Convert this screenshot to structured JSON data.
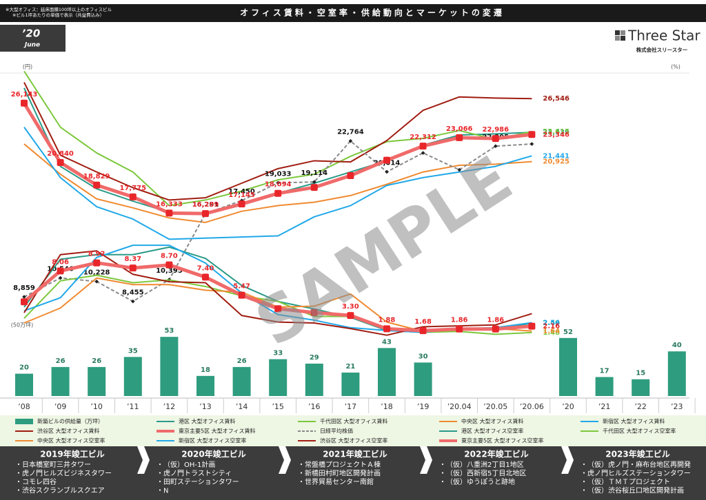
{
  "header": {
    "notes": [
      "※大型オフィス：延床面積100坪以上のオフィスビル",
      "※ビル1坪あたりの単価で表示（共益費込み）"
    ],
    "title": "オフィス賃料・空室率・供給動向とマーケットの変遷"
  },
  "date": {
    "year": "’20",
    "month": "June"
  },
  "logo": {
    "name": "Three Star",
    "company": "株式会社スリースター"
  },
  "watermark": "SAMPLE",
  "chart_data": {
    "type": "combo",
    "y_label": "(円)",
    "y2_label": "(%)",
    "y3_label": "(50万坪)",
    "ylim": [
      8000,
      30000
    ],
    "y2lim": [
      0,
      30
    ],
    "y3lim": [
      0,
      100
    ],
    "categories": [
      "’08",
      "’09",
      "’10",
      "’11",
      "’12",
      "’13",
      "’14",
      "’15",
      "’16",
      "’17",
      "’18",
      "’19",
      "’20.04",
      "’20.05",
      "’20.06",
      "’20",
      "’21",
      "’22",
      "’23"
    ],
    "series": [
      {
        "name": "新築ビルの供給量（万坪）",
        "type": "bar",
        "axis": "y3",
        "color": "#2e9c7e",
        "values": [
          20,
          26,
          26,
          35,
          53,
          18,
          26,
          33,
          29,
          21,
          43,
          30,
          null,
          null,
          null,
          52,
          17,
          15,
          40
        ]
      },
      {
        "name": "港区 大型オフィス賃料",
        "type": "line",
        "axis": "y",
        "color": "#2a9a88",
        "values": [
          27500,
          20500,
          18500,
          17400,
          16400,
          16300,
          17200,
          18100,
          19000,
          20000,
          21000,
          22400,
          23300,
          23400,
          23539,
          null,
          null,
          null,
          null
        ],
        "value_labels": [
          null,
          null,
          null,
          null,
          null,
          null,
          null,
          null,
          null,
          null,
          null,
          null,
          null,
          null,
          "23,539",
          null,
          null,
          null,
          null
        ]
      },
      {
        "name": "千代田区 大型オフィス賃料",
        "type": "line",
        "axis": "y",
        "color": "#7cc83c",
        "values": [
          29000,
          24000,
          21700,
          20000,
          17000,
          17500,
          18300,
          19300,
          19800,
          21400,
          22700,
          23000,
          23700,
          22900,
          23615,
          null,
          null,
          null,
          null
        ],
        "value_labels": [
          null,
          null,
          null,
          null,
          null,
          null,
          null,
          null,
          null,
          null,
          null,
          null,
          null,
          null,
          "23,615",
          null,
          null,
          null,
          null
        ]
      },
      {
        "name": "中央区 大型オフィス賃料",
        "type": "line",
        "axis": "y",
        "color": "#f08a30",
        "values": [
          22500,
          19800,
          17600,
          16800,
          15900,
          15500,
          16500,
          17000,
          17300,
          17900,
          18900,
          20000,
          20600,
          20700,
          20925,
          null,
          null,
          null,
          null
        ],
        "value_labels": [
          null,
          null,
          null,
          null,
          null,
          null,
          null,
          null,
          null,
          null,
          null,
          null,
          null,
          null,
          "20,925",
          null,
          null,
          null,
          null
        ]
      },
      {
        "name": "新宿区 大型オフィス賃料",
        "type": "line",
        "axis": "y",
        "color": "#20a8e8",
        "values": [
          24000,
          19500,
          16900,
          15800,
          14000,
          14100,
          14200,
          14300,
          16000,
          17000,
          18800,
          19500,
          20000,
          20500,
          21441,
          null,
          null,
          null,
          null
        ],
        "value_labels": [
          null,
          null,
          null,
          null,
          null,
          null,
          null,
          null,
          null,
          null,
          null,
          null,
          null,
          null,
          "21,441",
          null,
          null,
          null,
          null
        ]
      },
      {
        "name": "渋谷区 大型オフィス賃料",
        "type": "line",
        "axis": "y",
        "color": "#a01c10",
        "values": [
          28000,
          21500,
          20000,
          18600,
          17500,
          17700,
          19000,
          20300,
          21000,
          20900,
          22800,
          25500,
          26700,
          26600,
          26546,
          null,
          null,
          null,
          null
        ],
        "value_labels": [
          null,
          null,
          null,
          null,
          null,
          null,
          null,
          null,
          null,
          null,
          null,
          null,
          null,
          null,
          "26,546",
          null,
          null,
          null,
          null
        ]
      },
      {
        "name": "東京主要5区 大型オフィス賃料",
        "type": "line",
        "axis": "y",
        "color": "#f06a6a",
        "marker": "#e8262a",
        "label_color": "#e8262a",
        "values": [
          26143,
          20840,
          18829,
          17775,
          16333,
          16289,
          17145,
          18094,
          18627,
          19677,
          21048,
          22312,
          23066,
          22986,
          23346,
          null,
          null,
          null,
          null
        ],
        "value_labels": [
          "26,143",
          "20,840",
          "18,829",
          "17,775",
          "16,333",
          "16,289",
          "17,145",
          "18,094",
          null,
          null,
          null,
          "22,312",
          "23,066",
          "22,986",
          "23,346",
          null,
          null,
          null,
          null
        ]
      },
      {
        "name": "日経平均株価",
        "type": "line",
        "axis": "y",
        "color": "#888888",
        "dashed": true,
        "label_color": "#111111",
        "values": [
          8859,
          10546,
          10228,
          8455,
          10395,
          16291,
          17450,
          19033,
          19114,
          22764,
          20014,
          21700,
          20194,
          22305,
          22500,
          null,
          null,
          null,
          null
        ],
        "value_labels": [
          "8,859",
          "10,546",
          "10,228",
          "8,455",
          "10,395",
          "16,291",
          "17,450",
          "19,033",
          "19,114",
          "22,764",
          "20,014",
          null,
          null,
          "22,305",
          null,
          null,
          null,
          null,
          null
        ]
      },
      {
        "name": "港区 大型オフィス空室率",
        "type": "line",
        "axis": "y2",
        "color": "#2a9a88",
        "values": [
          4.2,
          9.3,
          9.8,
          9.8,
          10.6,
          9.4,
          6.5,
          4.8,
          4.0,
          3.1,
          1.7,
          1.5,
          1.8,
          1.8,
          2.49,
          null,
          null,
          null,
          null
        ],
        "value_labels": [
          null,
          null,
          null,
          null,
          null,
          null,
          null,
          null,
          null,
          null,
          null,
          null,
          null,
          null,
          "2.49",
          null,
          null,
          null,
          null
        ]
      },
      {
        "name": "千代田区 大型オフィス空室率",
        "type": "line",
        "axis": "y2",
        "color": "#7cc83c",
        "values": [
          3.0,
          7.0,
          7.6,
          6.8,
          7.1,
          6.4,
          5.4,
          4.8,
          3.2,
          3.2,
          1.9,
          1.5,
          1.6,
          1.3,
          1.48,
          null,
          null,
          null,
          null
        ],
        "value_labels": [
          null,
          null,
          null,
          null,
          null,
          null,
          null,
          null,
          null,
          null,
          null,
          null,
          null,
          null,
          "1.48",
          null,
          null,
          null,
          null
        ]
      },
      {
        "name": "中央区 大型オフィス空室率",
        "type": "line",
        "axis": "y2",
        "color": "#f08a30",
        "values": [
          2.5,
          4.1,
          7.3,
          6.6,
          6.6,
          6.0,
          5.8,
          4.2,
          4.3,
          5.6,
          2.6,
          1.6,
          1.9,
          1.9,
          1.64,
          null,
          null,
          null,
          null
        ],
        "value_labels": [
          null,
          null,
          null,
          null,
          null,
          null,
          null,
          null,
          null,
          null,
          null,
          null,
          null,
          null,
          "1.64",
          null,
          null,
          null,
          null
        ]
      },
      {
        "name": "新宿区 大型オフィス空室率",
        "type": "line",
        "axis": "y2",
        "color": "#20a8e8",
        "values": [
          3.8,
          5.2,
          9.5,
          10.8,
          10.8,
          8.9,
          5.7,
          3.4,
          2.8,
          2.0,
          1.7,
          1.5,
          1.9,
          2.0,
          2.54,
          null,
          null,
          null,
          null
        ],
        "value_labels": [
          null,
          null,
          null,
          null,
          null,
          null,
          null,
          null,
          null,
          null,
          null,
          null,
          null,
          null,
          "2.54",
          null,
          null,
          null,
          null
        ]
      },
      {
        "name": "渋谷区 大型オフィス空室率",
        "type": "line",
        "axis": "y2",
        "color": "#a01c10",
        "values": [
          3.6,
          9.8,
          10.2,
          7.7,
          6.9,
          6.8,
          3.3,
          2.6,
          2.5,
          1.9,
          1.2,
          2.1,
          2.2,
          2.3,
          3.5,
          null,
          null,
          null,
          null
        ]
      },
      {
        "name": "東京主要5区 大型オフィス空室率",
        "type": "line",
        "axis": "y2",
        "color": "#f06a6a",
        "marker": "#e8262a",
        "label_color": "#e8262a",
        "values": [
          4.76,
          8.06,
          8.92,
          8.37,
          8.7,
          7.4,
          5.47,
          4.03,
          3.61,
          3.3,
          1.88,
          1.68,
          1.86,
          1.86,
          2.16,
          null,
          null,
          null,
          null
        ],
        "value_labels": [
          null,
          "8.06",
          "8.92",
          "8.37",
          "8.70",
          "7.40",
          "5.47",
          null,
          null,
          "3.30",
          "1.88",
          "1.68",
          "1.86",
          "1.86",
          "2.16",
          null,
          null,
          null,
          null
        ]
      }
    ]
  },
  "completions": [
    {
      "title": "2019年竣工ビル",
      "items": [
        "日本橋室町三井タワー",
        "虎ノ門ヒルズビジネスタワー",
        "コモレ四谷",
        "渋谷スクランブルスクエア"
      ]
    },
    {
      "title": "2020年竣工ビル",
      "items": [
        "（仮）OH-1計画",
        "虎ノ門トラストシティ",
        "田町ステーションタワー",
        "N"
      ]
    },
    {
      "title": "2021年竣工ビル",
      "items": [
        "常盤橋プロジェクトＡ棟",
        "新橋田村町地区開発計画",
        "世界貿易センター南館"
      ]
    },
    {
      "title": "2022年竣工ビル",
      "items": [
        "（仮）八重洲2丁目1地区",
        "（仮）西新宿5丁目北地区",
        "（仮）ゆうぽうと跡地"
      ]
    },
    {
      "title": "2023年竣工ビル",
      "items": [
        "（仮）虎ノ門・麻布台地区再開発",
        "虎ノ門ヒルズステーションタワー",
        "（仮）ＴＭＴプロジェクト",
        "（仮）渋谷桜丘口地区開発計画"
      ]
    }
  ]
}
